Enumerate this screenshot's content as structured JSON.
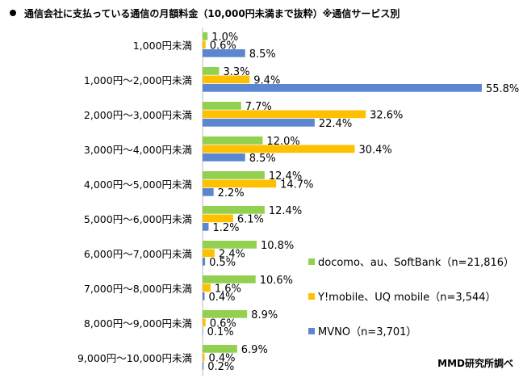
{
  "chart_data": {
    "type": "bar",
    "orientation": "horizontal",
    "title": "通信会社に支払っている通信の月額料金（10,000円未満まで抜粋）※通信サービス別",
    "categories": [
      "1,000円未満",
      "1,000円～2,000円未満",
      "2,000円～3,000円未満",
      "3,000円～4,000円未満",
      "4,000円～5,000円未満",
      "5,000円～6,000円未満",
      "6,000円～7,000円未満",
      "7,000円～8,000円未満",
      "8,000円～9,000円未満",
      "9,000円～10,000円未満"
    ],
    "series": [
      {
        "name": "docomo、au、SoftBank（n=21,816）",
        "color": "#92D050",
        "values": [
          1.0,
          3.3,
          7.7,
          12.0,
          12.4,
          12.4,
          10.8,
          10.6,
          8.9,
          6.9
        ]
      },
      {
        "name": "Y!mobile、UQ mobile（n=3,544）",
        "color": "#FFC000",
        "values": [
          0.6,
          9.4,
          32.6,
          30.4,
          14.7,
          6.1,
          2.4,
          1.6,
          0.6,
          0.4
        ]
      },
      {
        "name": "MVNO（n=3,701）",
        "color": "#5B86D0",
        "values": [
          8.5,
          55.8,
          22.4,
          8.5,
          2.2,
          1.2,
          0.5,
          0.4,
          0.1,
          0.2
        ]
      }
    ],
    "value_suffix": "%",
    "legend_position": "right",
    "grid": false
  },
  "credit": "MMD研究所調べ"
}
